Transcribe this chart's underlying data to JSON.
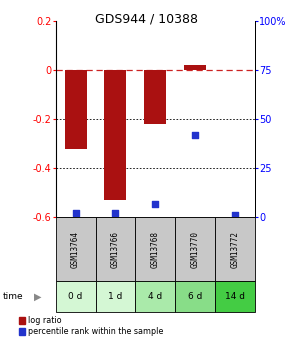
{
  "title": "GDS944 / 10388",
  "categories": [
    "GSM13764",
    "GSM13766",
    "GSM13768",
    "GSM13770",
    "GSM13772"
  ],
  "time_labels": [
    "0 d",
    "1 d",
    "4 d",
    "6 d",
    "14 d"
  ],
  "log_ratios": [
    -0.32,
    -0.53,
    -0.22,
    0.02,
    0.0
  ],
  "percentile_ranks": [
    2,
    2,
    7,
    42,
    1
  ],
  "ylim_left": [
    -0.6,
    0.2
  ],
  "ylim_right": [
    0,
    100
  ],
  "bar_color": "#aa1111",
  "dot_color": "#2233cc",
  "dashed_line_color": "#cc2222",
  "label_bg_gray": "#c8c8c8",
  "time_colors": [
    "#d4f7d4",
    "#d4f7d4",
    "#aaeaaa",
    "#88dd88",
    "#44cc44"
  ],
  "legend_log_ratio": "log ratio",
  "legend_percentile": "percentile rank within the sample",
  "title_fontsize": 9,
  "tick_fontsize": 7,
  "bar_width": 0.55
}
